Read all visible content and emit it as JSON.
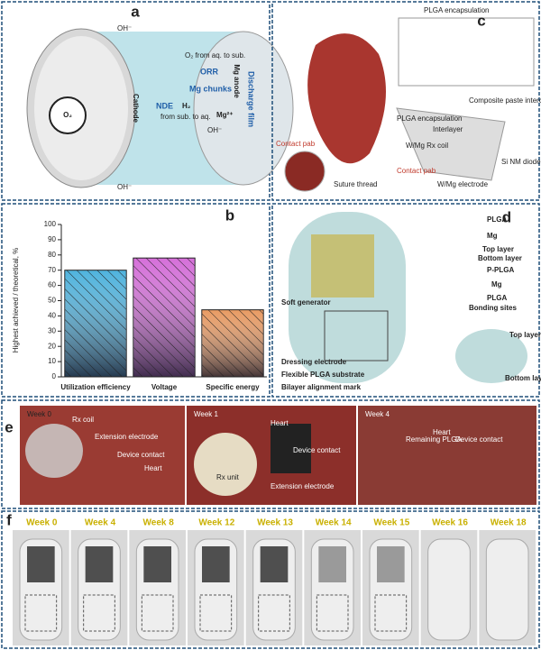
{
  "panel_a": {
    "label": "a",
    "oh_top": "OH⁻",
    "oh_bottom": "OH⁻",
    "o2_path": "O₂ from aq. to sub.",
    "orr": "ORR",
    "chunks": "Mg chunks",
    "nde": "NDE",
    "h2": "H₂",
    "h2_path": "from sub. to aq.",
    "mg_ion": "Mg²⁺",
    "oh_mid": "OH⁻",
    "cathode": "Cathode",
    "anode": "Mg anode",
    "film": "Discharge film",
    "o2": "O₂"
  },
  "panel_c": {
    "label": "c",
    "encap_title": "PLGA encapsulation",
    "contact1": "Contact pab",
    "suture": "Suture thread",
    "paste": "Composite paste interconnect",
    "encap": "PLGA encapsulation",
    "interlayer": "Interlayer",
    "coil": "W/Mg Rx coil",
    "diode": "Si NM diode",
    "contact2": "Contact pab",
    "electrode": "W/Mg electrode"
  },
  "chart_data": {
    "type": "bar",
    "label": "b",
    "ylabel": "Highest achieved / theoretical, %",
    "categories": [
      "Utilization efficiency",
      "Voltage",
      "Specific energy"
    ],
    "values": [
      70,
      78,
      44
    ],
    "colors": [
      "#4fb3dd",
      "#d56fd9",
      "#e89a62"
    ],
    "ylim": [
      0,
      100
    ],
    "yticks": [
      0,
      10,
      20,
      30,
      40,
      50,
      60,
      70,
      80,
      90,
      100
    ]
  },
  "panel_d": {
    "label": "d",
    "plga1": "PLGA",
    "mg1": "Mg",
    "top": "Top layer",
    "bottom": "Bottom layer",
    "pplga": "P-PLGA",
    "mg2": "Mg",
    "plga2": "PLGA",
    "bonding": "Bonding sites",
    "generator": "Soft generator",
    "dressing": "Dressing electrode",
    "substrate": "Flexible PLGA substrate",
    "mark": "Bilayer alignment mark",
    "top2": "Top layer",
    "bottom2": "Bottom layer"
  },
  "panel_e": {
    "label": "e",
    "w0": "Week 0",
    "rx": "Rx coil",
    "ext": "Extension electrode",
    "dev": "Device contact",
    "heart": "Heart",
    "w1": "Week 1",
    "heart1": "Heart",
    "rxu": "Rx unit",
    "dev1": "Device contact",
    "ext1": "Extension electrode",
    "w4": "Week 4",
    "rem": "Remaining PLGA",
    "heart4": "Heart",
    "dev4": "Device contact"
  },
  "panel_f": {
    "label": "f",
    "weeks": [
      "Week 0",
      "Week 4",
      "Week 8",
      "Week 12",
      "Week 13",
      "Week 14",
      "Week 15",
      "Week 16",
      "Week 18"
    ]
  }
}
